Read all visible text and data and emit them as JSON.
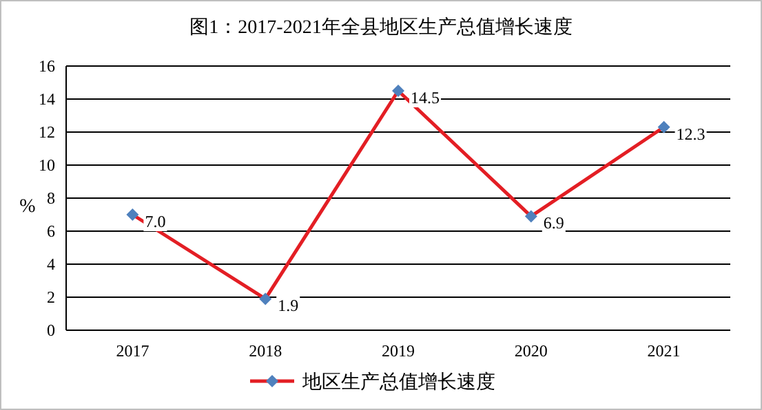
{
  "chart_data": {
    "type": "line",
    "title": "图1：2017-2021年全县地区生产总值增长速度",
    "ylabel": "%",
    "categories": [
      "2017",
      "2018",
      "2019",
      "2020",
      "2021"
    ],
    "series": [
      {
        "name": "地区生产总值增长速度",
        "color": "#e31e24",
        "values": [
          7.0,
          1.9,
          14.5,
          6.9,
          12.3
        ],
        "value_labels": [
          "7.0",
          "1.9",
          "14.5",
          "6.9",
          "12.3"
        ]
      }
    ],
    "ylim": [
      0,
      16
    ],
    "yticks": [
      0,
      2,
      4,
      6,
      8,
      10,
      12,
      14,
      16
    ],
    "grid": "y",
    "legend": "bottom",
    "marker": "diamond",
    "line_style": "solid"
  }
}
